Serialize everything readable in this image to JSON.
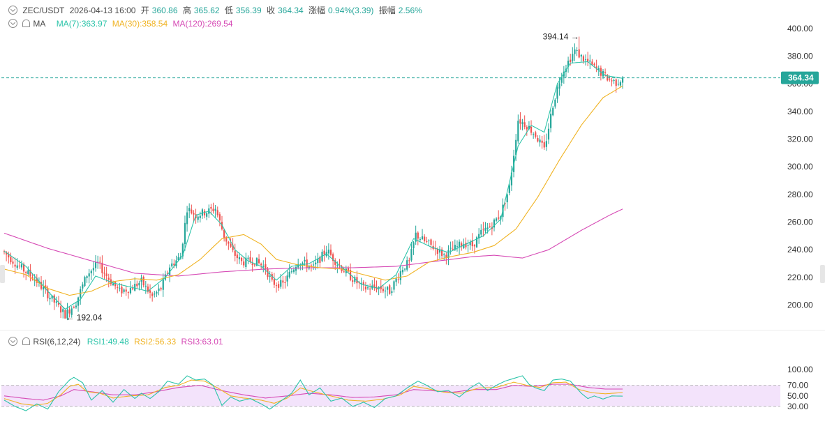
{
  "header": {
    "pair": "ZEC/USDT",
    "datetime": "2026-04-13 16:00",
    "open_label": "开",
    "open": "360.86",
    "high_label": "高",
    "high": "365.62",
    "low_label": "低",
    "low": "356.39",
    "close_label": "收",
    "close": "364.34",
    "change_label": "涨幅",
    "change": "0.94%(3.39)",
    "amp_label": "振幅",
    "amp": "2.56%"
  },
  "ma_legend": {
    "name": "MA",
    "ma7": "MA(7):363.97",
    "ma30": "MA(30):358.54",
    "ma120": "MA(120):269.54"
  },
  "rsi_legend": {
    "name": "RSI(6,12,24)",
    "rsi1": "RSI1:49.48",
    "rsi2": "RSI2:56.33",
    "rsi3": "RSI3:63.01"
  },
  "colors": {
    "up": "#26a69a",
    "down": "#ef5350",
    "ma7": "#2bc4a9",
    "ma30": "#f0b323",
    "ma120": "#d64ab5",
    "rsi_band": "#f3e3fb"
  },
  "chart_data": [
    {
      "type": "candlestick",
      "title": "ZEC/USDT",
      "y_ticks": [
        200,
        220,
        240,
        260,
        280,
        300,
        320,
        340,
        360,
        380,
        400
      ],
      "y_tick_labels": [
        "200.00",
        "220.00",
        "240.00",
        "260.00",
        "280.00",
        "300.00",
        "320.00",
        "340.00",
        "360.00",
        "380.00",
        "400.00"
      ],
      "ylim": [
        190,
        405
      ],
      "last_price": 364.34,
      "last_price_label": "364.34",
      "max_annotation": {
        "value": 394.14,
        "label": "394.14 →"
      },
      "min_annotation": {
        "value": 192.04,
        "label": "← 192.04"
      },
      "close_keypoints": [
        [
          0,
          238
        ],
        [
          6,
          229
        ],
        [
          14,
          219
        ],
        [
          22,
          204
        ],
        [
          28,
          193
        ],
        [
          33,
          202
        ],
        [
          38,
          222
        ],
        [
          43,
          230
        ],
        [
          48,
          219
        ],
        [
          53,
          210
        ],
        [
          58,
          212
        ],
        [
          63,
          217
        ],
        [
          68,
          206
        ],
        [
          72,
          212
        ],
        [
          76,
          228
        ],
        [
          81,
          235
        ],
        [
          84,
          270
        ],
        [
          88,
          265
        ],
        [
          94,
          268
        ],
        [
          97,
          270
        ],
        [
          101,
          250
        ],
        [
          105,
          238
        ],
        [
          109,
          231
        ],
        [
          115,
          232
        ],
        [
          120,
          227
        ],
        [
          123,
          216
        ],
        [
          128,
          215
        ],
        [
          135,
          232
        ],
        [
          142,
          227
        ],
        [
          148,
          240
        ],
        [
          153,
          230
        ],
        [
          158,
          222
        ],
        [
          165,
          212
        ],
        [
          171,
          213
        ],
        [
          177,
          210
        ],
        [
          183,
          227
        ],
        [
          186,
          231
        ],
        [
          189,
          251
        ],
        [
          193,
          246
        ],
        [
          197,
          242
        ],
        [
          202,
          236
        ],
        [
          206,
          240
        ],
        [
          211,
          245
        ],
        [
          215,
          243
        ],
        [
          219,
          252
        ],
        [
          224,
          258
        ],
        [
          228,
          266
        ],
        [
          232,
          285
        ],
        [
          236,
          334
        ],
        [
          240,
          330
        ],
        [
          244,
          323
        ],
        [
          248,
          312
        ],
        [
          252,
          345
        ],
        [
          256,
          368
        ],
        [
          259,
          376
        ],
        [
          262,
          384
        ],
        [
          266,
          378
        ],
        [
          270,
          373
        ],
        [
          274,
          368
        ],
        [
          278,
          363
        ],
        [
          281,
          361
        ],
        [
          284,
          364
        ]
      ],
      "ma7_keypoints": [
        [
          0,
          239
        ],
        [
          10,
          228
        ],
        [
          20,
          210
        ],
        [
          28,
          197
        ],
        [
          35,
          204
        ],
        [
          42,
          221
        ],
        [
          50,
          216
        ],
        [
          58,
          213
        ],
        [
          66,
          210
        ],
        [
          74,
          220
        ],
        [
          82,
          236
        ],
        [
          88,
          265
        ],
        [
          94,
          268
        ],
        [
          100,
          258
        ],
        [
          106,
          240
        ],
        [
          112,
          232
        ],
        [
          118,
          228
        ],
        [
          125,
          218
        ],
        [
          132,
          228
        ],
        [
          140,
          230
        ],
        [
          148,
          237
        ],
        [
          156,
          226
        ],
        [
          164,
          215
        ],
        [
          172,
          212
        ],
        [
          180,
          222
        ],
        [
          188,
          248
        ],
        [
          196,
          242
        ],
        [
          204,
          238
        ],
        [
          212,
          244
        ],
        [
          220,
          250
        ],
        [
          228,
          262
        ],
        [
          236,
          315
        ],
        [
          242,
          330
        ],
        [
          248,
          325
        ],
        [
          254,
          360
        ],
        [
          260,
          375
        ],
        [
          268,
          376
        ],
        [
          276,
          366
        ],
        [
          284,
          364
        ]
      ],
      "ma30_keypoints": [
        [
          0,
          226
        ],
        [
          10,
          222
        ],
        [
          20,
          212
        ],
        [
          30,
          207
        ],
        [
          40,
          210
        ],
        [
          50,
          217
        ],
        [
          60,
          219
        ],
        [
          70,
          218
        ],
        [
          80,
          222
        ],
        [
          90,
          233
        ],
        [
          100,
          248
        ],
        [
          110,
          251
        ],
        [
          118,
          244
        ],
        [
          125,
          233
        ],
        [
          135,
          229
        ],
        [
          145,
          227
        ],
        [
          155,
          226
        ],
        [
          165,
          222
        ],
        [
          175,
          218
        ],
        [
          185,
          221
        ],
        [
          195,
          231
        ],
        [
          205,
          235
        ],
        [
          215,
          238
        ],
        [
          225,
          243
        ],
        [
          235,
          255
        ],
        [
          245,
          278
        ],
        [
          255,
          305
        ],
        [
          265,
          330
        ],
        [
          275,
          350
        ],
        [
          284,
          358.5
        ]
      ],
      "ma120_keypoints": [
        [
          0,
          252
        ],
        [
          20,
          241
        ],
        [
          40,
          232
        ],
        [
          60,
          223
        ],
        [
          80,
          221
        ],
        [
          100,
          224
        ],
        [
          120,
          226
        ],
        [
          140,
          227
        ],
        [
          160,
          227
        ],
        [
          180,
          228
        ],
        [
          200,
          232
        ],
        [
          215,
          235
        ],
        [
          225,
          236
        ],
        [
          238,
          234
        ],
        [
          250,
          240
        ],
        [
          265,
          254
        ],
        [
          278,
          265
        ],
        [
          284,
          269.5
        ]
      ],
      "rsi_ticks": [
        30,
        50,
        70,
        100
      ],
      "rsi_tick_labels": [
        "30.00",
        "50.00",
        "70.00",
        "100.00"
      ]
    },
    {
      "type": "line",
      "title": "RSI(6,12,24)",
      "ylim": [
        20,
        100
      ],
      "rsi1_keypoints": [
        [
          0,
          42
        ],
        [
          5,
          30
        ],
        [
          10,
          22
        ],
        [
          15,
          35
        ],
        [
          20,
          25
        ],
        [
          25,
          58
        ],
        [
          30,
          80
        ],
        [
          32,
          85
        ],
        [
          36,
          75
        ],
        [
          40,
          42
        ],
        [
          45,
          60
        ],
        [
          50,
          38
        ],
        [
          55,
          62
        ],
        [
          60,
          45
        ],
        [
          63,
          55
        ],
        [
          67,
          45
        ],
        [
          71,
          58
        ],
        [
          75,
          78
        ],
        [
          80,
          72
        ],
        [
          84,
          88
        ],
        [
          88,
          80
        ],
        [
          92,
          82
        ],
        [
          96,
          70
        ],
        [
          100,
          32
        ],
        [
          104,
          48
        ],
        [
          108,
          40
        ],
        [
          113,
          45
        ],
        [
          118,
          35
        ],
        [
          122,
          25
        ],
        [
          127,
          40
        ],
        [
          132,
          55
        ],
        [
          136,
          80
        ],
        [
          140,
          52
        ],
        [
          145,
          65
        ],
        [
          150,
          40
        ],
        [
          155,
          46
        ],
        [
          160,
          30
        ],
        [
          165,
          38
        ],
        [
          170,
          28
        ],
        [
          175,
          45
        ],
        [
          180,
          50
        ],
        [
          185,
          65
        ],
        [
          190,
          78
        ],
        [
          194,
          70
        ],
        [
          199,
          58
        ],
        [
          204,
          60
        ],
        [
          209,
          48
        ],
        [
          214,
          65
        ],
        [
          218,
          75
        ],
        [
          222,
          60
        ],
        [
          226,
          70
        ],
        [
          230,
          78
        ],
        [
          234,
          83
        ],
        [
          238,
          88
        ],
        [
          241,
          72
        ],
        [
          244,
          65
        ],
        [
          248,
          60
        ],
        [
          252,
          80
        ],
        [
          256,
          82
        ],
        [
          260,
          78
        ],
        [
          265,
          55
        ],
        [
          268,
          45
        ],
        [
          271,
          50
        ],
        [
          275,
          44
        ],
        [
          279,
          50
        ],
        [
          284,
          49.5
        ]
      ],
      "rsi2_keypoints": [
        [
          0,
          45
        ],
        [
          8,
          35
        ],
        [
          14,
          32
        ],
        [
          20,
          36
        ],
        [
          26,
          52
        ],
        [
          30,
          68
        ],
        [
          34,
          72
        ],
        [
          38,
          58
        ],
        [
          44,
          55
        ],
        [
          50,
          46
        ],
        [
          58,
          50
        ],
        [
          66,
          52
        ],
        [
          74,
          66
        ],
        [
          80,
          70
        ],
        [
          86,
          80
        ],
        [
          92,
          78
        ],
        [
          98,
          65
        ],
        [
          104,
          50
        ],
        [
          110,
          46
        ],
        [
          118,
          42
        ],
        [
          124,
          36
        ],
        [
          130,
          46
        ],
        [
          136,
          65
        ],
        [
          142,
          58
        ],
        [
          150,
          50
        ],
        [
          158,
          42
        ],
        [
          166,
          40
        ],
        [
          174,
          44
        ],
        [
          182,
          52
        ],
        [
          188,
          68
        ],
        [
          194,
          64
        ],
        [
          202,
          57
        ],
        [
          210,
          55
        ],
        [
          218,
          65
        ],
        [
          226,
          66
        ],
        [
          234,
          76
        ],
        [
          240,
          70
        ],
        [
          246,
          66
        ],
        [
          252,
          75
        ],
        [
          258,
          76
        ],
        [
          264,
          62
        ],
        [
          270,
          56
        ],
        [
          276,
          54
        ],
        [
          284,
          56.3
        ]
      ],
      "rsi3_keypoints": [
        [
          0,
          50
        ],
        [
          10,
          45
        ],
        [
          18,
          42
        ],
        [
          26,
          50
        ],
        [
          32,
          62
        ],
        [
          40,
          58
        ],
        [
          50,
          52
        ],
        [
          60,
          52
        ],
        [
          70,
          58
        ],
        [
          80,
          66
        ],
        [
          90,
          70
        ],
        [
          100,
          60
        ],
        [
          110,
          52
        ],
        [
          120,
          46
        ],
        [
          130,
          50
        ],
        [
          140,
          55
        ],
        [
          150,
          52
        ],
        [
          160,
          47
        ],
        [
          170,
          48
        ],
        [
          180,
          52
        ],
        [
          188,
          62
        ],
        [
          196,
          60
        ],
        [
          206,
          57
        ],
        [
          216,
          62
        ],
        [
          226,
          62
        ],
        [
          234,
          70
        ],
        [
          242,
          68
        ],
        [
          252,
          72
        ],
        [
          260,
          72
        ],
        [
          268,
          66
        ],
        [
          276,
          63
        ],
        [
          284,
          63
        ]
      ]
    }
  ]
}
